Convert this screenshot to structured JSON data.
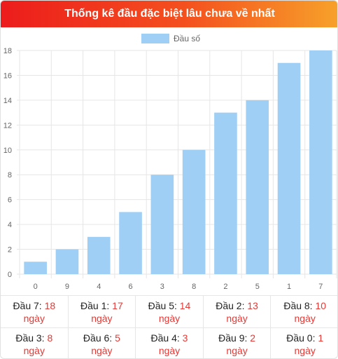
{
  "header": {
    "title": "Thống kê đầu đặc biệt lâu chưa về nhất"
  },
  "colors": {
    "bar": "#9fcff5",
    "grid": "#e6e6e6",
    "tick": "#666666",
    "accent": "#e53935"
  },
  "chart_data": {
    "type": "bar",
    "categories": [
      "0",
      "9",
      "4",
      "6",
      "3",
      "8",
      "2",
      "5",
      "1",
      "7"
    ],
    "series": [
      {
        "name": "Đầu số",
        "values": [
          1,
          2,
          3,
          5,
          8,
          10,
          13,
          14,
          17,
          18
        ]
      }
    ],
    "ylim": [
      0,
      18
    ],
    "yticks": [
      0,
      2,
      4,
      6,
      8,
      10,
      12,
      14,
      16,
      18
    ],
    "grid": true,
    "legend": "top-center"
  },
  "stats": [
    {
      "label": "Đầu 7:",
      "count": "18",
      "unit": "ngày"
    },
    {
      "label": "Đầu 1:",
      "count": "17",
      "unit": "ngày"
    },
    {
      "label": "Đầu 5:",
      "count": "14",
      "unit": "ngày"
    },
    {
      "label": "Đầu 2:",
      "count": "13",
      "unit": "ngày"
    },
    {
      "label": "Đầu 8:",
      "count": "10",
      "unit": "ngày"
    },
    {
      "label": "Đầu 3:",
      "count": "8",
      "unit": "ngày"
    },
    {
      "label": "Đầu 6:",
      "count": "5",
      "unit": "ngày"
    },
    {
      "label": "Đầu 4:",
      "count": "3",
      "unit": "ngày"
    },
    {
      "label": "Đầu 9:",
      "count": "2",
      "unit": "ngày"
    },
    {
      "label": "Đầu 0:",
      "count": "1",
      "unit": "ngày"
    }
  ]
}
